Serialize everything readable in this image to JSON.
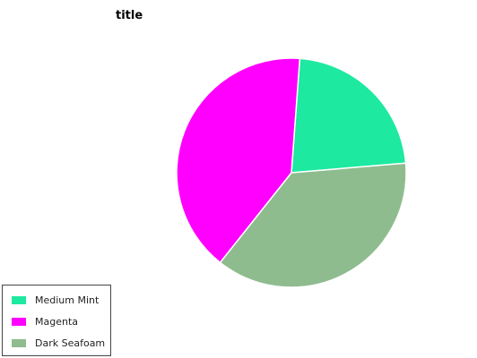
{
  "chart_data": {
    "type": "pie",
    "title": "title",
    "labels": [
      "Medium Mint",
      "Magenta",
      "Dark Seafoam"
    ],
    "values": [
      22.5,
      40.5,
      37.0
    ],
    "colors": [
      "#1de9a0",
      "#ff00ff",
      "#8fbc8f"
    ],
    "legend": {
      "placement": "bottom-left",
      "entries": [
        "Medium Mint",
        "Magenta",
        "Dark Seafoam"
      ]
    }
  }
}
